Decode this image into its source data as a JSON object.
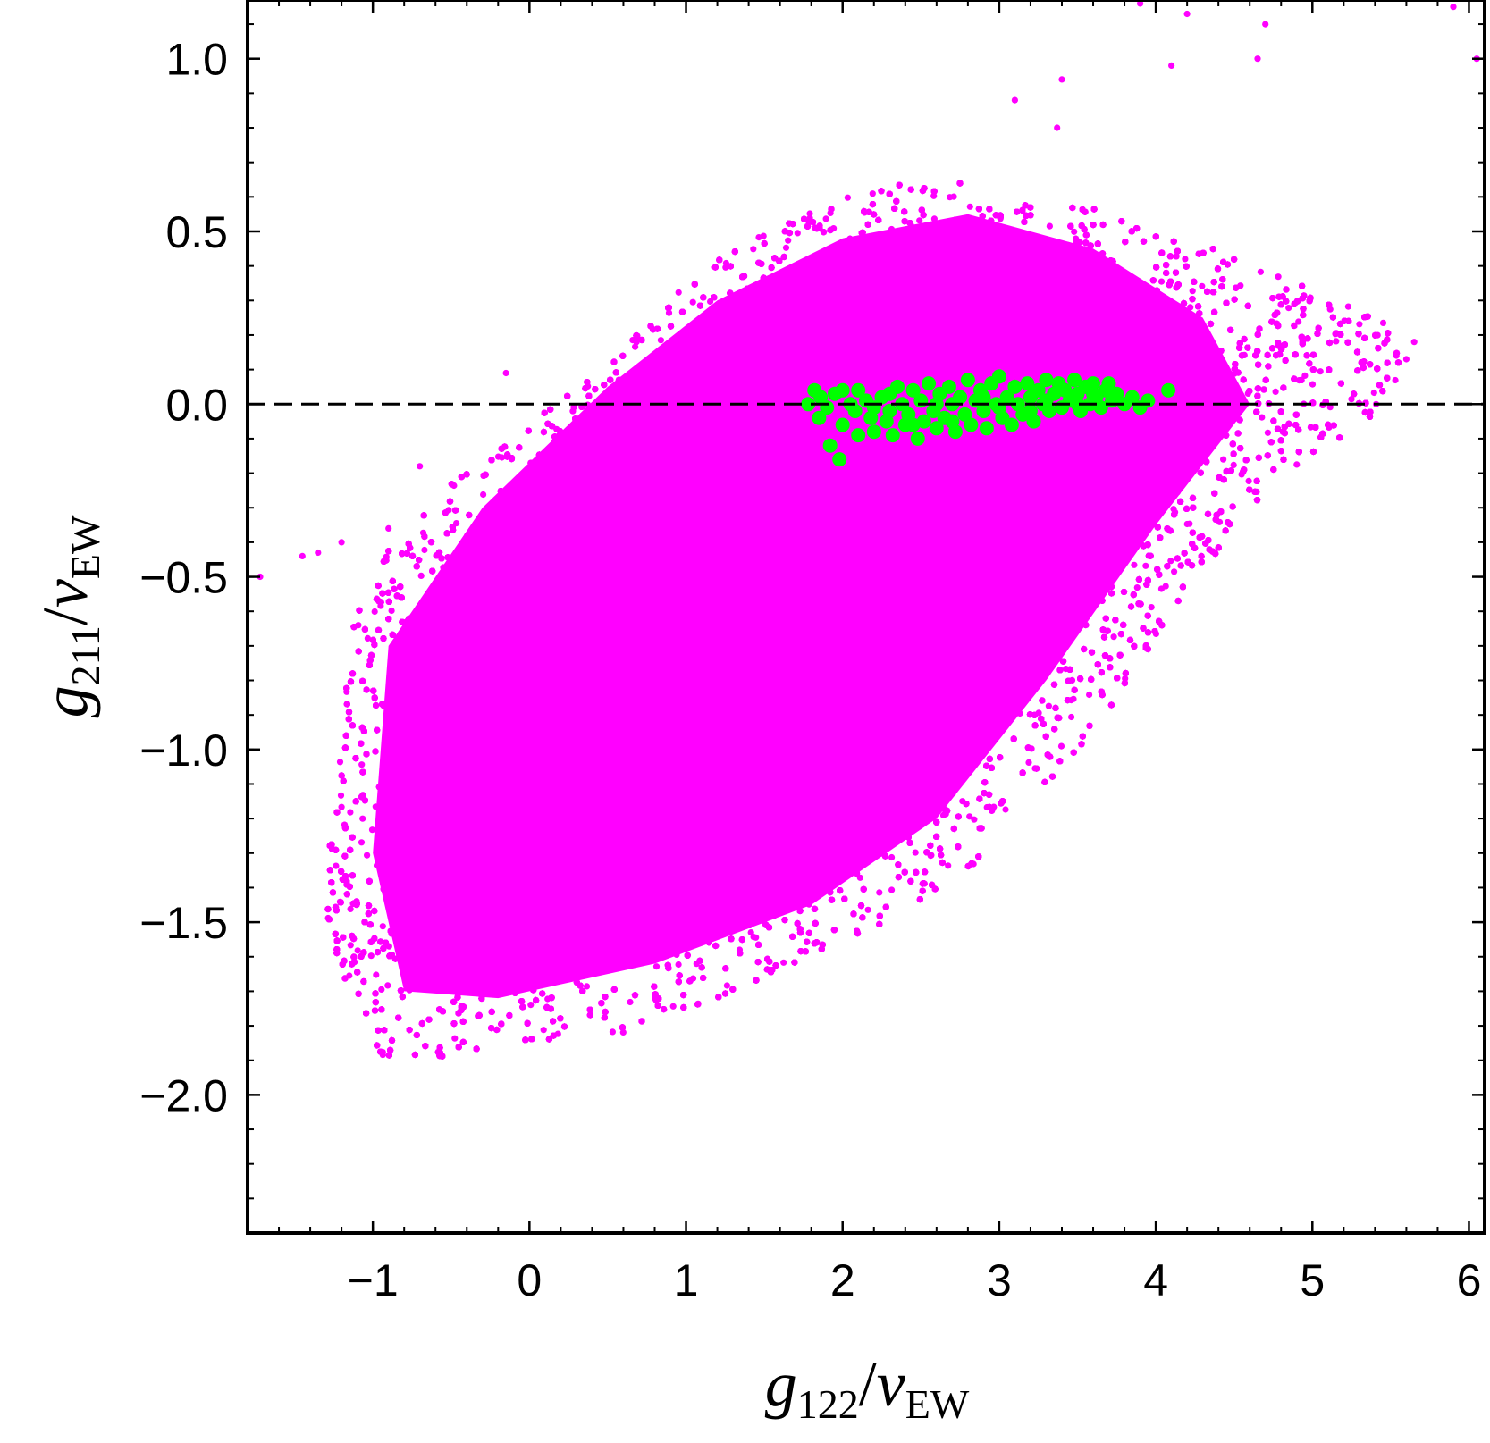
{
  "chart_data": {
    "type": "scatter",
    "title": "",
    "xlabel": {
      "var": "g",
      "var_sub": "122",
      "slash": "/",
      "den": "v",
      "den_sub": "EW"
    },
    "ylabel": {
      "var": "g",
      "var_sub": "211",
      "slash": "/",
      "den": "v",
      "den_sub": "EW"
    },
    "xlim": [
      -1.8,
      6.1
    ],
    "ylim": [
      -2.4,
      1.17
    ],
    "xticks": [
      -1,
      0,
      1,
      2,
      3,
      4,
      5,
      6
    ],
    "xtick_labels": [
      "−1",
      "0",
      "1",
      "2",
      "3",
      "4",
      "5",
      "6"
    ],
    "yticks": [
      -2.0,
      -1.5,
      -1.0,
      -0.5,
      0.0,
      0.5,
      1.0
    ],
    "ytick_labels": [
      "−2.0",
      "−1.5",
      "−1.0",
      "−0.5",
      "0.0",
      "0.5",
      "1.0"
    ],
    "grid": false,
    "legend": "none",
    "reference_line": {
      "y": 0.0,
      "style": "dashed",
      "color": "#000000"
    },
    "series": [
      {
        "color": "#ff00ff",
        "marker_size": "small",
        "region_polygon": [
          [
            -0.95,
            -1.9
          ],
          [
            -1.15,
            -1.7
          ],
          [
            -1.3,
            -1.5
          ],
          [
            -1.3,
            -1.3
          ],
          [
            -1.2,
            -1.0
          ],
          [
            -1.15,
            -0.65
          ],
          [
            -0.95,
            -0.45
          ],
          [
            -0.55,
            -0.25
          ],
          [
            -0.2,
            -0.12
          ],
          [
            0.2,
            0.02
          ],
          [
            0.5,
            0.15
          ],
          [
            0.8,
            0.25
          ],
          [
            1.1,
            0.4
          ],
          [
            1.5,
            0.5
          ],
          [
            2.0,
            0.6
          ],
          [
            2.6,
            0.66
          ],
          [
            3.2,
            0.6
          ],
          [
            3.8,
            0.55
          ],
          [
            4.4,
            0.45
          ],
          [
            5.0,
            0.33
          ],
          [
            5.45,
            0.24
          ],
          [
            5.6,
            0.1
          ],
          [
            5.35,
            -0.05
          ],
          [
            5.0,
            -0.15
          ],
          [
            4.6,
            -0.3
          ],
          [
            4.2,
            -0.55
          ],
          [
            3.9,
            -0.75
          ],
          [
            3.6,
            -0.95
          ],
          [
            3.2,
            -1.15
          ],
          [
            2.8,
            -1.35
          ],
          [
            2.3,
            -1.5
          ],
          [
            1.8,
            -1.6
          ],
          [
            1.2,
            -1.72
          ],
          [
            0.6,
            -1.82
          ],
          [
            -0.1,
            -1.85
          ],
          [
            -0.6,
            -1.9
          ]
        ],
        "dense_core": [
          [
            -0.8,
            -1.7
          ],
          [
            -1.0,
            -1.3
          ],
          [
            -0.9,
            -0.7
          ],
          [
            -0.3,
            -0.3
          ],
          [
            0.5,
            0.05
          ],
          [
            1.2,
            0.3
          ],
          [
            2.0,
            0.48
          ],
          [
            2.8,
            0.55
          ],
          [
            3.6,
            0.45
          ],
          [
            4.3,
            0.25
          ],
          [
            4.6,
            0.0
          ],
          [
            4.0,
            -0.35
          ],
          [
            3.3,
            -0.8
          ],
          [
            2.6,
            -1.2
          ],
          [
            1.8,
            -1.45
          ],
          [
            0.8,
            -1.62
          ],
          [
            -0.2,
            -1.72
          ]
        ],
        "outliers": [
          [
            -1.72,
            -0.5
          ],
          [
            -1.45,
            -0.44
          ],
          [
            -1.35,
            -0.43
          ],
          [
            -1.2,
            -0.4
          ],
          [
            -0.9,
            -0.36
          ],
          [
            -0.15,
            0.09
          ],
          [
            -0.7,
            -0.18
          ],
          [
            3.1,
            0.88
          ],
          [
            3.4,
            0.94
          ],
          [
            3.37,
            0.8
          ],
          [
            3.9,
            1.16
          ],
          [
            4.1,
            0.98
          ],
          [
            4.2,
            1.13
          ],
          [
            4.65,
            1.0
          ],
          [
            4.7,
            1.1
          ],
          [
            5.9,
            1.15
          ],
          [
            6.05,
            1.0
          ],
          [
            5.65,
            0.18
          ],
          [
            5.6,
            0.13
          ]
        ],
        "count": 36000
      },
      {
        "color": "#00ff00",
        "marker_size": "large",
        "points": [
          [
            1.78,
            0.0
          ],
          [
            1.82,
            0.04
          ],
          [
            1.86,
            0.02
          ],
          [
            1.85,
            -0.04
          ],
          [
            1.9,
            -0.01
          ],
          [
            1.92,
            -0.12
          ],
          [
            1.98,
            -0.16
          ],
          [
            1.95,
            0.03
          ],
          [
            2.0,
            -0.06
          ],
          [
            2.05,
            0.0
          ],
          [
            2.08,
            -0.02
          ],
          [
            2.1,
            -0.09
          ],
          [
            2.15,
            0.01
          ],
          [
            2.18,
            -0.04
          ],
          [
            2.2,
            -0.08
          ],
          [
            2.25,
            0.02
          ],
          [
            2.28,
            -0.05
          ],
          [
            2.3,
            -0.02
          ],
          [
            2.32,
            -0.09
          ],
          [
            2.35,
            0.05
          ],
          [
            2.38,
            0.0
          ],
          [
            2.4,
            -0.06
          ],
          [
            2.42,
            -0.03
          ],
          [
            2.45,
            0.04
          ],
          [
            2.48,
            -0.1
          ],
          [
            2.5,
            0.01
          ],
          [
            2.52,
            -0.05
          ],
          [
            2.55,
            0.06
          ],
          [
            2.58,
            -0.02
          ],
          [
            2.6,
            -0.07
          ],
          [
            2.62,
            0.03
          ],
          [
            2.65,
            -0.04
          ],
          [
            2.68,
            0.05
          ],
          [
            2.7,
            0.0
          ],
          [
            2.72,
            -0.08
          ],
          [
            2.75,
            0.02
          ],
          [
            2.78,
            -0.03
          ],
          [
            2.8,
            0.07
          ],
          [
            2.82,
            -0.06
          ],
          [
            2.85,
            0.01
          ],
          [
            2.88,
            0.04
          ],
          [
            2.9,
            -0.02
          ],
          [
            2.92,
            -0.07
          ],
          [
            2.95,
            0.06
          ],
          [
            2.98,
            0.0
          ],
          [
            3.0,
            0.08
          ],
          [
            3.02,
            -0.04
          ],
          [
            3.05,
            0.02
          ],
          [
            3.08,
            -0.06
          ],
          [
            3.1,
            0.05
          ],
          [
            3.12,
            0.0
          ],
          [
            3.15,
            -0.03
          ],
          [
            3.18,
            0.06
          ],
          [
            3.2,
            0.02
          ],
          [
            3.22,
            -0.05
          ],
          [
            3.25,
            0.04
          ],
          [
            3.28,
            0.0
          ],
          [
            3.3,
            0.07
          ],
          [
            3.32,
            -0.02
          ],
          [
            3.35,
            0.03
          ],
          [
            3.38,
            0.06
          ],
          [
            3.4,
            -0.01
          ],
          [
            3.42,
            0.04
          ],
          [
            3.45,
            0.01
          ],
          [
            3.48,
            0.07
          ],
          [
            3.5,
            0.03
          ],
          [
            3.52,
            -0.02
          ],
          [
            3.55,
            0.05
          ],
          [
            3.58,
            0.0
          ],
          [
            3.6,
            0.06
          ],
          [
            3.62,
            0.02
          ],
          [
            3.65,
            -0.01
          ],
          [
            3.68,
            0.04
          ],
          [
            3.7,
            0.06
          ],
          [
            3.72,
            0.01
          ],
          [
            3.75,
            0.03
          ],
          [
            3.8,
            0.0
          ],
          [
            3.85,
            0.02
          ],
          [
            3.9,
            -0.01
          ],
          [
            3.95,
            0.01
          ],
          [
            4.08,
            0.04
          ],
          [
            2.1,
            0.04
          ],
          [
            2.3,
            0.03
          ],
          [
            2.6,
            0.0
          ],
          [
            2.9,
            0.02
          ],
          [
            3.2,
            -0.02
          ],
          [
            3.5,
            0.0
          ],
          [
            2.0,
            0.04
          ],
          [
            2.2,
            -0.01
          ],
          [
            2.45,
            -0.06
          ],
          [
            2.7,
            -0.05
          ],
          [
            3.0,
            -0.01
          ],
          [
            3.3,
            0.01
          ],
          [
            3.6,
            0.03
          ]
        ]
      }
    ]
  }
}
